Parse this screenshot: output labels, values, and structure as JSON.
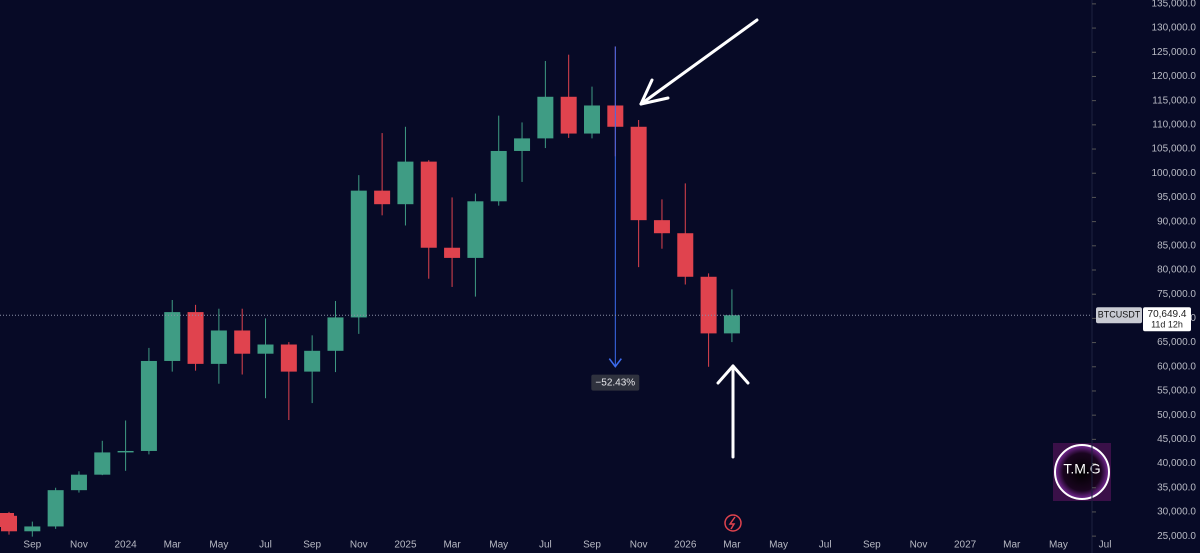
{
  "chart_data": {
    "type": "candlestick",
    "symbol": "BTCUSDT",
    "countdown": "11d 12h",
    "up_color": "#3f9c84",
    "down_color": "#e0434e",
    "open": [
      29200,
      26000,
      27000,
      34500,
      37700,
      42300,
      42600,
      61200,
      71300,
      60600,
      67500,
      62700,
      64600,
      59000,
      63300,
      70200,
      96400,
      93600,
      102400,
      84600,
      82500,
      94200,
      104600,
      107200,
      115800,
      108200,
      114000,
      109600,
      90300,
      87600,
      78600,
      66900
    ],
    "high": [
      30000,
      28000,
      35000,
      38400,
      44700,
      48900,
      63900,
      73800,
      72800,
      72000,
      72000,
      70000,
      65100,
      66500,
      73600,
      99600,
      108300,
      109600,
      102700,
      95000,
      95800,
      111900,
      110500,
      123200,
      124500,
      117900,
      126200,
      111000,
      94600,
      97900,
      79300,
      76000
    ],
    "low": [
      25300,
      24900,
      26500,
      34000,
      37600,
      38500,
      41900,
      59000,
      59200,
      56500,
      58400,
      53500,
      49000,
      52500,
      58900,
      66800,
      91300,
      89200,
      78200,
      76500,
      74500,
      93300,
      98200,
      105200,
      107300,
      107200,
      103500,
      80600,
      84400,
      77000,
      60000,
      65100
    ],
    "close": [
      26000,
      27000,
      34500,
      37700,
      42300,
      42600,
      61200,
      71300,
      60600,
      67500,
      62700,
      64600,
      59000,
      63300,
      70200,
      96400,
      93600,
      102400,
      84600,
      82500,
      94200,
      104600,
      107200,
      115800,
      108200,
      114000,
      109600,
      90300,
      87600,
      78600,
      66900,
      70649.4
    ],
    "xticks": [
      "Sep",
      "Nov",
      "2024",
      "Mar",
      "May",
      "Jul",
      "Sep",
      "Nov",
      "2025",
      "Mar",
      "May",
      "Jul",
      "Sep",
      "Nov",
      "2026",
      "Mar",
      "May",
      "Jul",
      "Sep",
      "Nov",
      "2027",
      "Mar",
      "May",
      "Jul"
    ],
    "ylim": [
      24200,
      135800
    ],
    "yticks": [
      {
        "value": 25000,
        "label": "25,000.0"
      },
      {
        "value": 30000,
        "label": "30,000.0"
      },
      {
        "value": 35000,
        "label": "35,000.0"
      },
      {
        "value": 40000,
        "label": "40,000.0"
      },
      {
        "value": 45000,
        "label": "45,000.0"
      },
      {
        "value": 50000,
        "label": "50,000.0"
      },
      {
        "value": 55000,
        "label": "55,000.0"
      },
      {
        "value": 60000,
        "label": "60,000.0"
      },
      {
        "value": 65000,
        "label": "65,000.0"
      },
      {
        "value": 70000,
        "label": "70,000.0"
      },
      {
        "value": 75000,
        "label": "75,000.0"
      },
      {
        "value": 80000,
        "label": "80,000.0"
      },
      {
        "value": 85000,
        "label": "85,000.0"
      },
      {
        "value": 90000,
        "label": "90,000.0"
      },
      {
        "value": 95000,
        "label": "95,000.0"
      },
      {
        "value": 100000,
        "label": "100,000.0"
      },
      {
        "value": 105000,
        "label": "105,000.0"
      },
      {
        "value": 110000,
        "label": "110,000.0"
      },
      {
        "value": 115000,
        "label": "115,000.0"
      },
      {
        "value": 120000,
        "label": "120,000.0"
      },
      {
        "value": 125000,
        "label": "125,000.0"
      },
      {
        "value": 130000,
        "label": "130,000.0"
      },
      {
        "value": 135000,
        "label": "135,000.0"
      }
    ],
    "last_price": {
      "value": 70649.4,
      "label": "70,649.4"
    },
    "measure": {
      "value": -52.43,
      "label": "−52.43%"
    },
    "watermark": "T.M.G"
  }
}
